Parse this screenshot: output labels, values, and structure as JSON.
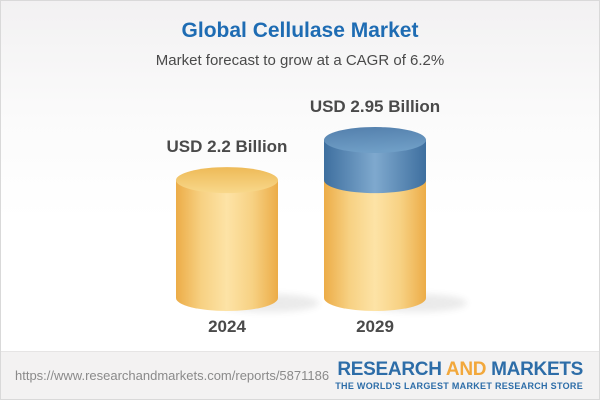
{
  "header": {
    "title": "Global Cellulase Market",
    "subtitle": "Market forecast to grow at a CAGR of 6.2%"
  },
  "chart_data": {
    "type": "bar",
    "style": "3d-cylinder",
    "title": "Global Cellulase Market",
    "subtitle": "Market forecast to grow at a CAGR of 6.2%",
    "unit": "USD Billion",
    "cagr_percent": 6.2,
    "categories": [
      "2024",
      "2029"
    ],
    "values": [
      2.2,
      2.95
    ],
    "value_labels": [
      "USD 2.2 Billion",
      "USD 2.95 Billion"
    ],
    "base_segment_value": 2.2,
    "ylim": [
      0,
      2.95
    ],
    "grid": false,
    "legend": false,
    "notes": "2029 bar shows growth above 2.2 as a blue top segment"
  },
  "footer": {
    "url": "https://www.researchandmarkets.com/reports/5871186",
    "logo": {
      "part1": "RESEARCH",
      "part2": "AND",
      "part3": "MARKETS",
      "tagline": "THE WORLD'S LARGEST MARKET RESEARCH STORE"
    }
  },
  "colors": {
    "title_blue": "#1E6CB3",
    "text_dark": "#4A4A4A",
    "url_gray": "#8A8A8A",
    "logo_blue": "#2D6DA8",
    "logo_orange": "#F2A83C",
    "bar_yellow_edge": "#ECAC47",
    "bar_yellow_mid": "#F7D183",
    "bar_yellow_center": "#FDE3A6",
    "bar_yellow_top_rim": "#EEBA58",
    "bar_yellow_top": "#F8D88B",
    "bar_blue_edge": "#3E6F9F",
    "bar_blue_center": "#7FA9CE",
    "bar_blue_top_rim": "#537FAC",
    "bar_blue_top": "#6F9EC6",
    "shadow": "#3A3A3A"
  }
}
